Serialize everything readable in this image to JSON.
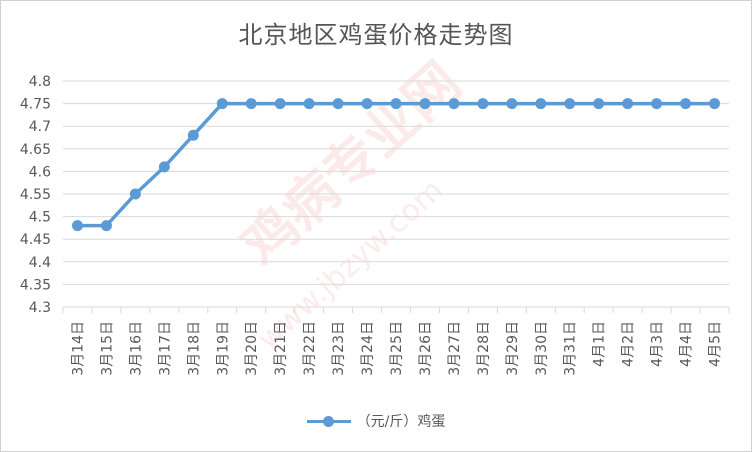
{
  "chart_data": {
    "type": "line",
    "title": "北京地区鸡蛋价格走势图",
    "categories": [
      "3月14日",
      "3月15日",
      "3月16日",
      "3月17日",
      "3月18日",
      "3月19日",
      "3月20日",
      "3月21日",
      "3月22日",
      "3月23日",
      "3月24日",
      "3月25日",
      "3月26日",
      "3月27日",
      "3月28日",
      "3月29日",
      "3月30日",
      "3月31日",
      "4月1日",
      "4月2日",
      "4月3日",
      "4月4日",
      "4月5日"
    ],
    "series": [
      {
        "name": "（元/斤）鸡蛋",
        "values": [
          4.48,
          4.48,
          4.55,
          4.61,
          4.68,
          4.75,
          4.75,
          4.75,
          4.75,
          4.75,
          4.75,
          4.75,
          4.75,
          4.75,
          4.75,
          4.75,
          4.75,
          4.75,
          4.75,
          4.75,
          4.75,
          4.75,
          4.75
        ]
      }
    ],
    "ylim": [
      4.3,
      4.8
    ],
    "yticks": [
      "4.3",
      "4.35",
      "4.4",
      "4.45",
      "4.5",
      "4.55",
      "4.6",
      "4.65",
      "4.7",
      "4.75",
      "4.8"
    ],
    "grid": true,
    "legend_position": "bottom",
    "colors": {
      "line": "#5b9bd5",
      "grid": "#d9d9d9",
      "axis_text": "#595959"
    }
  },
  "watermark": {
    "text": "鸡病专业网",
    "url": "www.jbzyw.com"
  }
}
